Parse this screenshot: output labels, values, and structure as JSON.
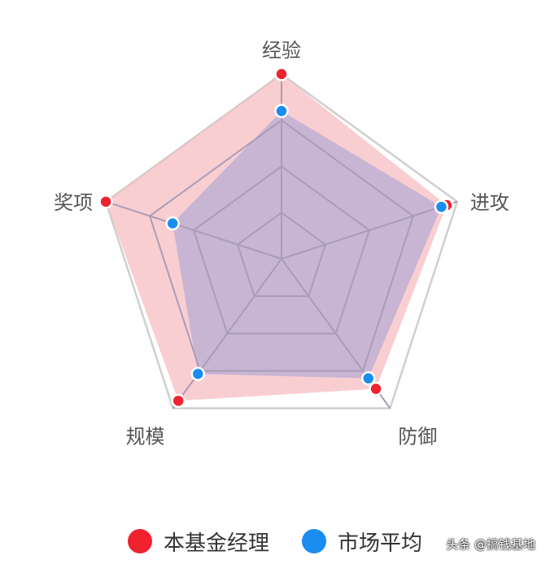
{
  "chart_data": {
    "type": "radar",
    "indicators": [
      {
        "name": "经验",
        "max": 100
      },
      {
        "name": "进攻",
        "max": 100
      },
      {
        "name": "防御",
        "max": 100
      },
      {
        "name": "规模",
        "max": 100
      },
      {
        "name": "奖项",
        "max": 100
      }
    ],
    "series": [
      {
        "name": "本基金经理",
        "values": [
          100,
          94,
          87,
          95,
          100
        ],
        "color": "#f0222e",
        "fill": "#f7b9bd"
      },
      {
        "name": "市场平均",
        "values": [
          80,
          91,
          80,
          77,
          62
        ],
        "color": "#1c8df0",
        "fill": "#b4a9d4"
      }
    ],
    "grid_levels": 4,
    "legend_position": "bottom"
  },
  "watermark": "头条 @搞钱基地"
}
